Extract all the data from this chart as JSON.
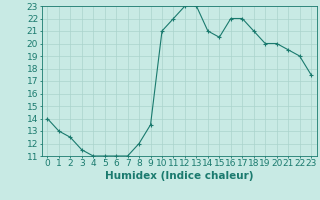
{
  "xlabel": "Humidex (Indice chaleur)",
  "x": [
    0,
    1,
    2,
    3,
    4,
    5,
    6,
    7,
    8,
    9,
    10,
    11,
    12,
    13,
    14,
    15,
    16,
    17,
    18,
    19,
    20,
    21,
    22,
    23
  ],
  "y": [
    14,
    13,
    12.5,
    11.5,
    11,
    11,
    11,
    11,
    12,
    13.5,
    21,
    22,
    23,
    23,
    21,
    20.5,
    22,
    22,
    21,
    20,
    20,
    19.5,
    19,
    17.5
  ],
  "line_color": "#1a7a6e",
  "marker": "+",
  "bg_color": "#c8eae4",
  "grid_color": "#aad4cc",
  "xlim": [
    -0.5,
    23.5
  ],
  "ylim": [
    11,
    23
  ],
  "xtick_labels": [
    "0",
    "1",
    "2",
    "3",
    "4",
    "5",
    "6",
    "7",
    "8",
    "9",
    "10",
    "11",
    "12",
    "13",
    "14",
    "15",
    "16",
    "17",
    "18",
    "19",
    "20",
    "21",
    "22",
    "23"
  ],
  "ytick_values": [
    11,
    12,
    13,
    14,
    15,
    16,
    17,
    18,
    19,
    20,
    21,
    22,
    23
  ],
  "fontsize_xlabel": 7.5,
  "fontsize_ticks": 6.5,
  "marker_size": 3,
  "linewidth": 0.8
}
